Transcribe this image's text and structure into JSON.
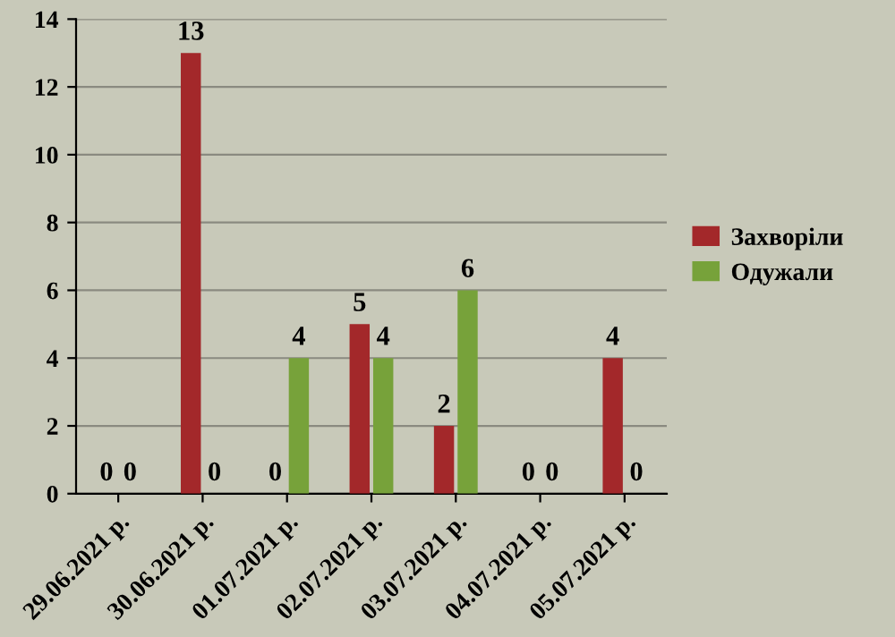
{
  "chart_data": {
    "type": "bar",
    "categories": [
      "29.06.2021 р.",
      "30.06.2021 р.",
      "01.07.2021 р.",
      "02.07.2021 р.",
      "03.07.2021 р.",
      "04.07.2021 р.",
      "05.07.2021 р."
    ],
    "series": [
      {
        "name": "Захворіли",
        "color": "#a3282a",
        "values": [
          0,
          13,
          0,
          5,
          2,
          0,
          4
        ]
      },
      {
        "name": "Одужали",
        "color": "#77a23a",
        "values": [
          0,
          0,
          4,
          4,
          6,
          0,
          0
        ]
      }
    ],
    "ylim": [
      0,
      14
    ],
    "yticks": [
      0,
      2,
      4,
      6,
      8,
      10,
      12,
      14
    ],
    "grid": "y",
    "legend": "right",
    "data_labels": true
  }
}
